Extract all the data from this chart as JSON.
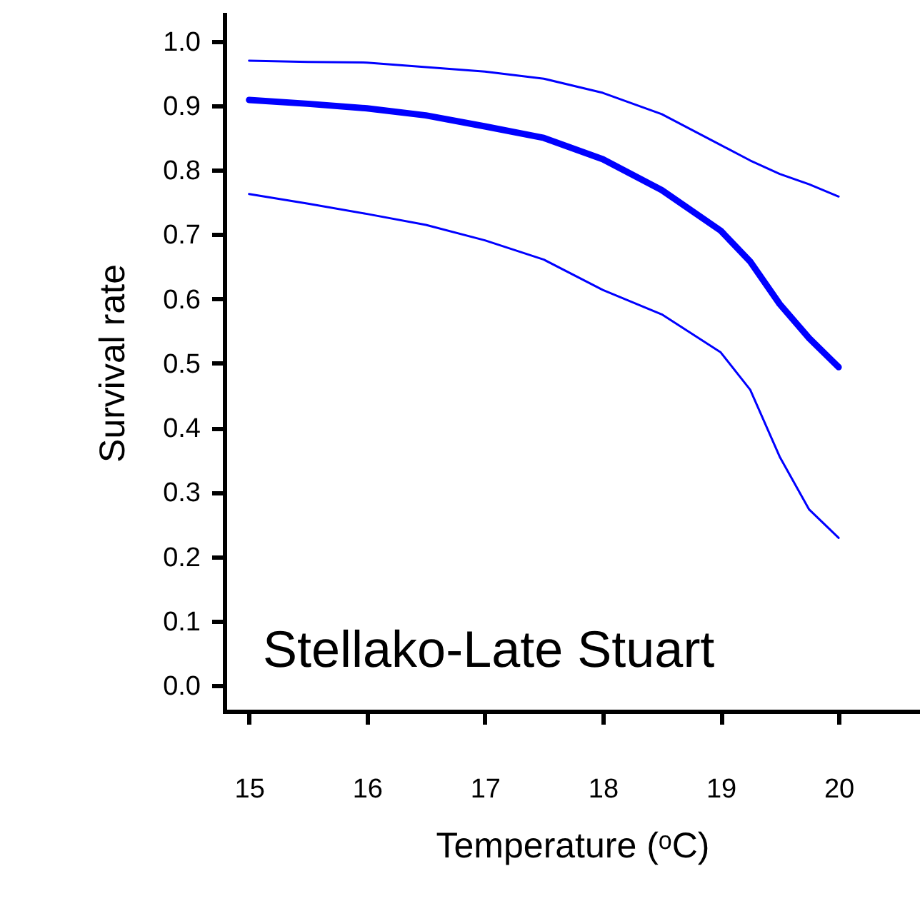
{
  "chart_data": {
    "type": "line",
    "xlabel": "Temperature (ᵒC)",
    "ylabel": "Survival rate",
    "annotations": [
      "Stellako-Late Stuart"
    ],
    "x": [
      15,
      15.5,
      16,
      16.5,
      17,
      17.5,
      18,
      18.5,
      19,
      19.25,
      19.5,
      19.75,
      20
    ],
    "series": [
      {
        "color": "#0000ff",
        "values": [
          0.909,
          0.903,
          0.896,
          0.885,
          0.868,
          0.85,
          0.817,
          0.769,
          0.706,
          0.658,
          0.592,
          0.539,
          0.494
        ]
      },
      {
        "color": "#0000ff",
        "values": [
          0.97,
          0.968,
          0.967,
          0.96,
          0.953,
          0.942,
          0.92,
          0.887,
          0.839,
          0.815,
          0.794,
          0.778,
          0.759
        ]
      },
      {
        "color": "#0000ff",
        "values": [
          0.763,
          0.748,
          0.732,
          0.715,
          0.691,
          0.661,
          0.614,
          0.576,
          0.517,
          0.459,
          0.355,
          0.273,
          0.229
        ]
      }
    ],
    "xlim": [
      14.79,
      20.69
    ],
    "xticks": [
      15,
      16,
      17,
      18,
      19,
      20
    ],
    "ylim": [
      -0.04,
      1.042
    ],
    "yticks": [
      {
        "value": 0,
        "label": "0.0"
      },
      0.1,
      0.2,
      0.3,
      0.4,
      0.5,
      0.6,
      0.7,
      0.8,
      0.9,
      {
        "value": 1,
        "label": "1.0"
      }
    ],
    "grid": false,
    "line_style": "solid"
  }
}
